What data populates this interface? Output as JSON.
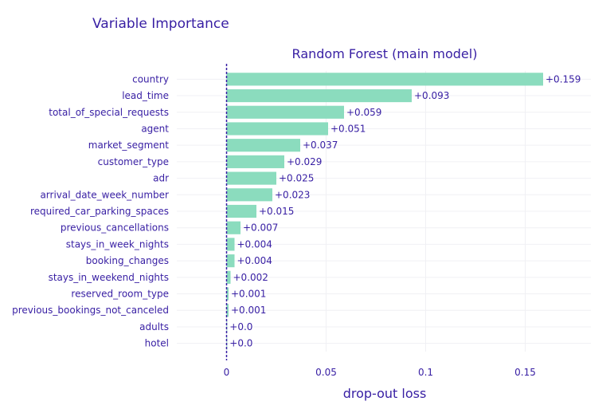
{
  "header": {
    "title": "Variable Importance",
    "subtitle": "Random Forest (main model)"
  },
  "colors": {
    "bar": "#8bdcbe",
    "text": "#371ea3",
    "grid": "#f0f0f4",
    "baseline": "#371ea3"
  },
  "chart_data": {
    "type": "bar",
    "orientation": "horizontal",
    "title": "Variable Importance",
    "subtitle": "Random Forest (main model)",
    "xlabel": "drop-out loss",
    "ylabel": "",
    "xlim": [
      -0.025,
      0.183
    ],
    "baseline": 0,
    "grid": true,
    "xticks": [
      0,
      0.05,
      0.1,
      0.15
    ],
    "xtick_labels": [
      "0",
      "0.05",
      "0.1",
      "0.15"
    ],
    "categories": [
      "country",
      "lead_time",
      "total_of_special_requests",
      "agent",
      "market_segment",
      "customer_type",
      "adr",
      "arrival_date_week_number",
      "required_car_parking_spaces",
      "previous_cancellations",
      "stays_in_week_nights",
      "booking_changes",
      "stays_in_weekend_nights",
      "reserved_room_type",
      "previous_bookings_not_canceled",
      "adults",
      "hotel"
    ],
    "values": [
      0.159,
      0.093,
      0.059,
      0.051,
      0.037,
      0.029,
      0.025,
      0.023,
      0.015,
      0.007,
      0.004,
      0.004,
      0.002,
      0.001,
      0.001,
      0.0,
      0.0
    ],
    "value_labels": [
      "+0.159",
      "+0.093",
      "+0.059",
      "+0.051",
      "+0.037",
      "+0.029",
      "+0.025",
      "+0.023",
      "+0.015",
      "+0.007",
      "+0.004",
      "+0.004",
      "+0.002",
      "+0.001",
      "+0.001",
      "+0.0",
      "+0.0"
    ]
  }
}
